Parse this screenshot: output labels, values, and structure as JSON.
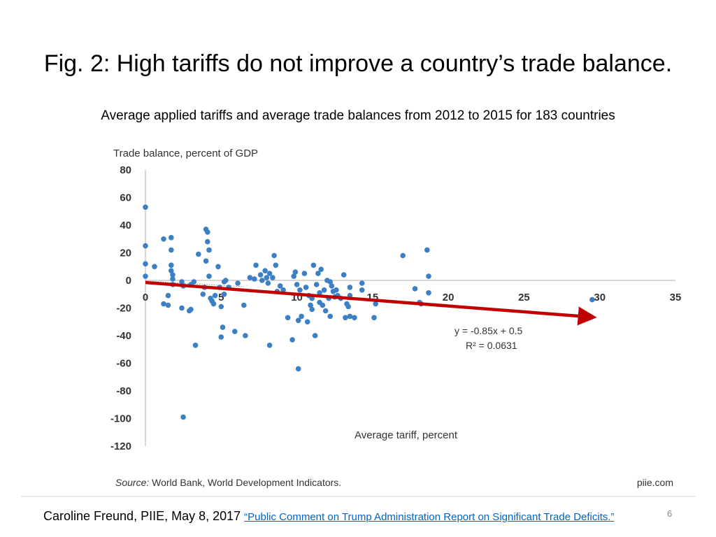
{
  "slide": {
    "title": "Fig. 2: High tariffs do not improve a country’s trade balance.",
    "subtitle": "Average applied tariffs and average trade balances from 2012 to 2015 for 183 countries",
    "citation_prefix": "Caroline Freund, PIIE, May 8, 2017 ",
    "citation_link": "“Public Comment on Trump Administration Report on Significant Trade Deficits.”",
    "page_number": "6"
  },
  "colors": {
    "points": "#3b7fc4",
    "trend_arrow": "#c00000",
    "axis": "#bfbfbf",
    "baseline_dotted": "#8a8a8a"
  },
  "chart_data": {
    "type": "scatter",
    "ylabel": "Trade balance, percent of GDP",
    "xlabel": "Average tariff, percent",
    "xlim": [
      0,
      35
    ],
    "ylim": [
      -120,
      80
    ],
    "xticks": [
      0,
      5,
      10,
      15,
      20,
      25,
      30,
      35
    ],
    "yticks": [
      80,
      60,
      40,
      20,
      0,
      -20,
      -40,
      -60,
      -80,
      -100,
      -120
    ],
    "grid": false,
    "equation": "y = -0.85x + 0.5",
    "r_squared": "R² = 0.0631",
    "trend_line": {
      "slope": -0.85,
      "intercept": 0.5,
      "x_start": 0,
      "x_end": 29.5
    },
    "source_label": "Source:",
    "source_text": " World Bank, World Development Indicators.",
    "credit": "piie.com",
    "series": [
      {
        "points": [
          [
            0,
            53
          ],
          [
            0,
            25
          ],
          [
            0,
            12
          ],
          [
            0,
            3
          ],
          [
            0.6,
            10
          ],
          [
            1.2,
            30
          ],
          [
            1.2,
            -17
          ],
          [
            1.5,
            -18
          ],
          [
            1.5,
            -11
          ],
          [
            1.7,
            31
          ],
          [
            1.7,
            22
          ],
          [
            1.7,
            11
          ],
          [
            1.7,
            7
          ],
          [
            1.8,
            4
          ],
          [
            1.8,
            1
          ],
          [
            1.8,
            -3
          ],
          [
            2.4,
            -1
          ],
          [
            2.5,
            -4
          ],
          [
            2.4,
            -20
          ],
          [
            2.5,
            -99
          ],
          [
            2.9,
            -22
          ],
          [
            3,
            -21
          ],
          [
            3,
            -3
          ],
          [
            3.2,
            -1
          ],
          [
            3.3,
            -47
          ],
          [
            3.5,
            19
          ],
          [
            3.8,
            -10
          ],
          [
            3.9,
            -5
          ],
          [
            4,
            14
          ],
          [
            4,
            37
          ],
          [
            4.1,
            35
          ],
          [
            4.1,
            28
          ],
          [
            4.2,
            22
          ],
          [
            4.2,
            3
          ],
          [
            4.3,
            -13
          ],
          [
            4.4,
            -15
          ],
          [
            4.5,
            -17
          ],
          [
            4.6,
            -11
          ],
          [
            4.8,
            10
          ],
          [
            4.9,
            -5
          ],
          [
            5,
            -19
          ],
          [
            5,
            -41
          ],
          [
            5.1,
            -34
          ],
          [
            5.2,
            -1
          ],
          [
            5.2,
            -10
          ],
          [
            5.3,
            0
          ],
          [
            5.5,
            -5
          ],
          [
            5.9,
            -37
          ],
          [
            6.1,
            -2
          ],
          [
            6.5,
            -18
          ],
          [
            6.6,
            -40
          ],
          [
            6.9,
            2
          ],
          [
            7.2,
            1
          ],
          [
            7.3,
            11
          ],
          [
            7.6,
            4
          ],
          [
            7.7,
            0
          ],
          [
            7.9,
            7
          ],
          [
            8,
            2
          ],
          [
            8.1,
            -2
          ],
          [
            8.2,
            5
          ],
          [
            8.2,
            -47
          ],
          [
            8.4,
            2
          ],
          [
            8.5,
            18
          ],
          [
            8.6,
            11
          ],
          [
            8.7,
            -8
          ],
          [
            8.9,
            -4
          ],
          [
            9.1,
            -7
          ],
          [
            9.4,
            -27
          ],
          [
            9.7,
            -43
          ],
          [
            9.8,
            3
          ],
          [
            9.9,
            6
          ],
          [
            10,
            -3
          ],
          [
            10.1,
            -29
          ],
          [
            10.1,
            -64
          ],
          [
            10.2,
            -7
          ],
          [
            10.3,
            -26
          ],
          [
            10.5,
            5
          ],
          [
            10.6,
            -5
          ],
          [
            10.7,
            -30
          ],
          [
            10.8,
            -11
          ],
          [
            10.9,
            -18
          ],
          [
            11,
            -21
          ],
          [
            11,
            -13
          ],
          [
            11.1,
            11
          ],
          [
            11.2,
            -40
          ],
          [
            11.3,
            -3
          ],
          [
            11.4,
            5
          ],
          [
            11.5,
            -9
          ],
          [
            11.5,
            -16
          ],
          [
            11.6,
            8
          ],
          [
            11.7,
            -18
          ],
          [
            11.8,
            -7
          ],
          [
            11.9,
            -22
          ],
          [
            12,
            0
          ],
          [
            12.1,
            -13
          ],
          [
            12.2,
            -26
          ],
          [
            12.2,
            -1
          ],
          [
            12.3,
            -4
          ],
          [
            12.4,
            -8
          ],
          [
            12.5,
            -12
          ],
          [
            12.6,
            -7
          ],
          [
            12.7,
            -11
          ],
          [
            12.9,
            -13
          ],
          [
            13.1,
            4
          ],
          [
            13.2,
            -27
          ],
          [
            13.3,
            -17
          ],
          [
            13.4,
            -19
          ],
          [
            13.5,
            -26
          ],
          [
            13.5,
            -11
          ],
          [
            13.5,
            -5
          ],
          [
            13.8,
            -27
          ],
          [
            14.3,
            -2
          ],
          [
            14.3,
            -7
          ],
          [
            15.2,
            -17
          ],
          [
            15.1,
            -27
          ],
          [
            17,
            18
          ],
          [
            17.8,
            -6
          ],
          [
            18.1,
            -16
          ],
          [
            18.2,
            -17
          ],
          [
            18.6,
            22
          ],
          [
            18.7,
            3
          ],
          [
            18.7,
            -9
          ],
          [
            29.5,
            -14
          ]
        ]
      }
    ]
  }
}
